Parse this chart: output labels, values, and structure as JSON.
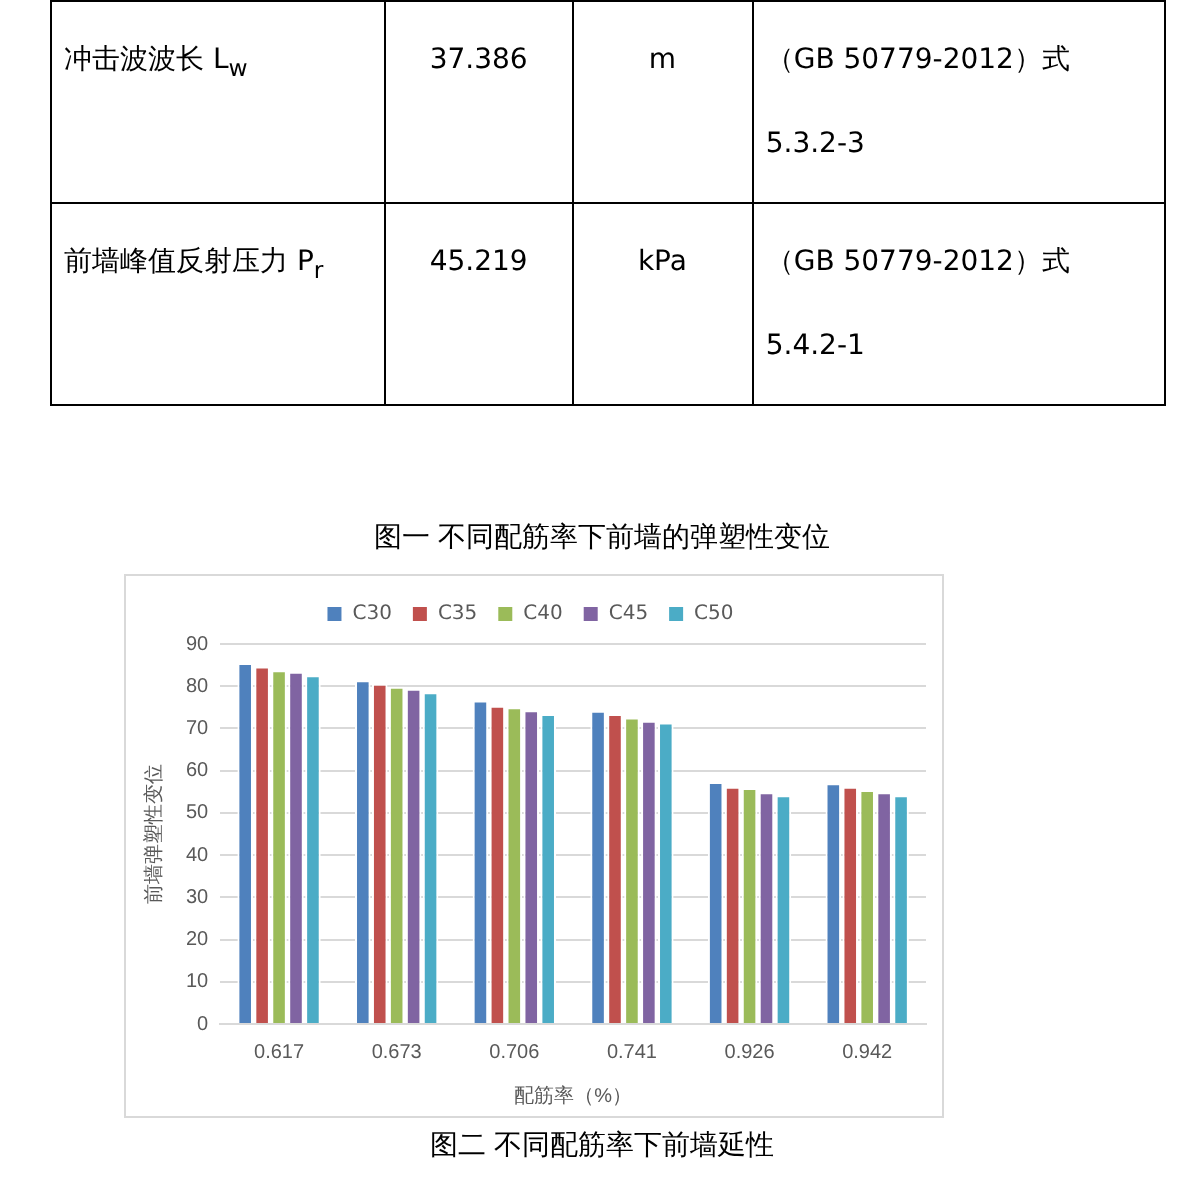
{
  "chart_data": {
    "type": "bar",
    "title": "图一 不同配筋率下前墙的弹塑性变位",
    "xlabel": "配筋率（%）",
    "ylabel": "前墙弹塑性变位",
    "categories": [
      "0.617",
      "0.673",
      "0.706",
      "0.741",
      "0.926",
      "0.942"
    ],
    "series": [
      {
        "name": "C30",
        "color": "#4f81bd",
        "values": [
          85.5,
          81.4,
          76.6,
          74.2,
          57.3,
          57.0
        ]
      },
      {
        "name": "C35",
        "color": "#c0504d",
        "values": [
          84.7,
          80.6,
          75.4,
          73.4,
          56.2,
          56.2
        ]
      },
      {
        "name": "C40",
        "color": "#9bbb59",
        "values": [
          83.8,
          79.9,
          75.0,
          72.6,
          55.9,
          55.4
        ]
      },
      {
        "name": "C45",
        "color": "#8064a2",
        "values": [
          83.4,
          79.4,
          74.3,
          71.8,
          54.9,
          54.9
        ]
      },
      {
        "name": "C50",
        "color": "#4bacc6",
        "values": [
          82.6,
          78.6,
          73.4,
          71.4,
          54.2,
          54.2
        ]
      }
    ],
    "ylim": [
      0,
      90
    ],
    "yticks": [
      0,
      10,
      20,
      30,
      40,
      50,
      60,
      70,
      80,
      90
    ],
    "grid": "y",
    "legend": "top",
    "annotations": [
      "冲击波波长 L$_{w}$",
      "37.386",
      "m",
      "（GB 50779-2012）式 5.3.2-3",
      "前墙峰值反射压力 P$_{r}$",
      "45.219",
      "kPa",
      "（GB 50779-2012）式 5.4.2-1",
      "图二 不同配筋率下前墙延性"
    ]
  }
}
